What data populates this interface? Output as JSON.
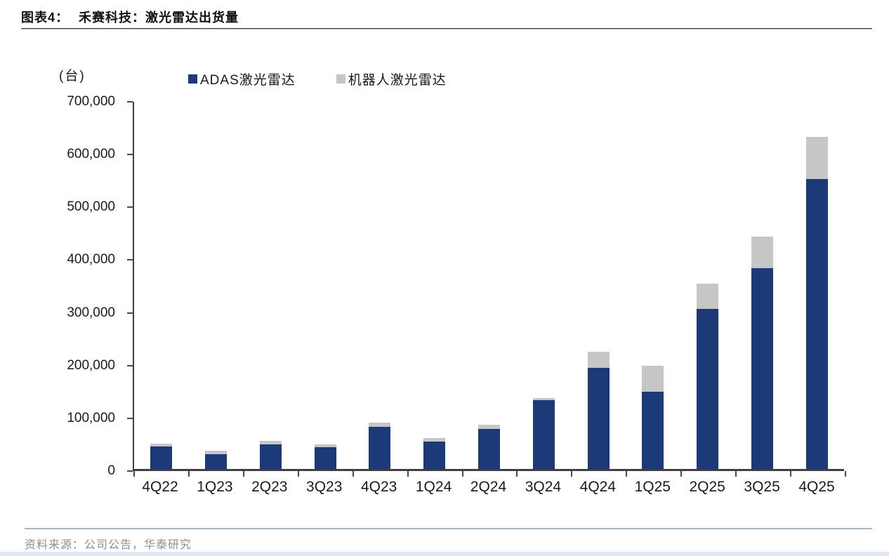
{
  "header": {
    "title_prefix": "图表4：",
    "title_main": "禾赛科技：激光雷达出货量"
  },
  "footer": {
    "source": "资料来源：公司公告，华泰研究"
  },
  "chart_data": {
    "type": "bar",
    "subtype": "stacked-column",
    "unit_label": "(台)",
    "categories": [
      "4Q22",
      "1Q23",
      "2Q23",
      "3Q23",
      "4Q23",
      "1Q24",
      "2Q24",
      "3Q24",
      "4Q24",
      "1Q25",
      "2Q25",
      "3Q25",
      "4Q25"
    ],
    "series": [
      {
        "name": "ADAS激光雷达",
        "color": "#1c3a78",
        "values": [
          43000,
          28000,
          47000,
          41000,
          80000,
          52000,
          76000,
          130000,
          192000,
          146000,
          303000,
          380000,
          550000
        ]
      },
      {
        "name": "机器人激光雷达",
        "color": "#c6c6c6",
        "values": [
          5000,
          7000,
          6000,
          6000,
          8000,
          7000,
          8000,
          4000,
          30000,
          50000,
          49000,
          60000,
          80000
        ]
      }
    ],
    "totals": [
      48000,
      35000,
      53000,
      47000,
      88000,
      59000,
      84000,
      134000,
      222000,
      196000,
      352000,
      440000,
      630000
    ],
    "ylim": [
      0,
      700000
    ],
    "ytick_step": 100000,
    "ytick_labels": [
      "0",
      "100,000",
      "200,000",
      "300,000",
      "400,000",
      "500,000",
      "600,000",
      "700,000"
    ],
    "xlabel": "",
    "ylabel": "(台)",
    "grid": false,
    "legend_position": "top"
  }
}
